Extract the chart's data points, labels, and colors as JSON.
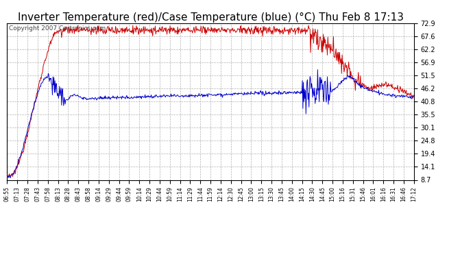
{
  "title": "Inverter Temperature (red)/Case Temperature (blue) (°C) Thu Feb 8 17:13",
  "copyright": "Copyright 2007 Cartronics.com",
  "yticks": [
    8.7,
    14.1,
    19.4,
    24.8,
    30.1,
    35.5,
    40.8,
    46.2,
    51.5,
    56.9,
    62.2,
    67.6,
    72.9
  ],
  "xtick_labels": [
    "06:55",
    "07:13",
    "07:28",
    "07:43",
    "07:58",
    "08:13",
    "08:28",
    "08:43",
    "08:58",
    "09:14",
    "09:29",
    "09:44",
    "09:59",
    "10:14",
    "10:29",
    "10:44",
    "10:59",
    "11:14",
    "11:29",
    "11:44",
    "11:59",
    "12:14",
    "12:30",
    "12:45",
    "13:00",
    "13:15",
    "13:30",
    "13:45",
    "14:00",
    "14:15",
    "14:30",
    "14:45",
    "15:00",
    "15:16",
    "15:31",
    "15:46",
    "16:01",
    "16:16",
    "16:31",
    "16:46",
    "17:12"
  ],
  "bg_color": "#ffffff",
  "grid_color": "#b0b0b0",
  "red_color": "#cc0000",
  "blue_color": "#0000cc",
  "title_fontsize": 11,
  "copyright_fontsize": 6.5,
  "ymin": 8.7,
  "ymax": 72.9
}
